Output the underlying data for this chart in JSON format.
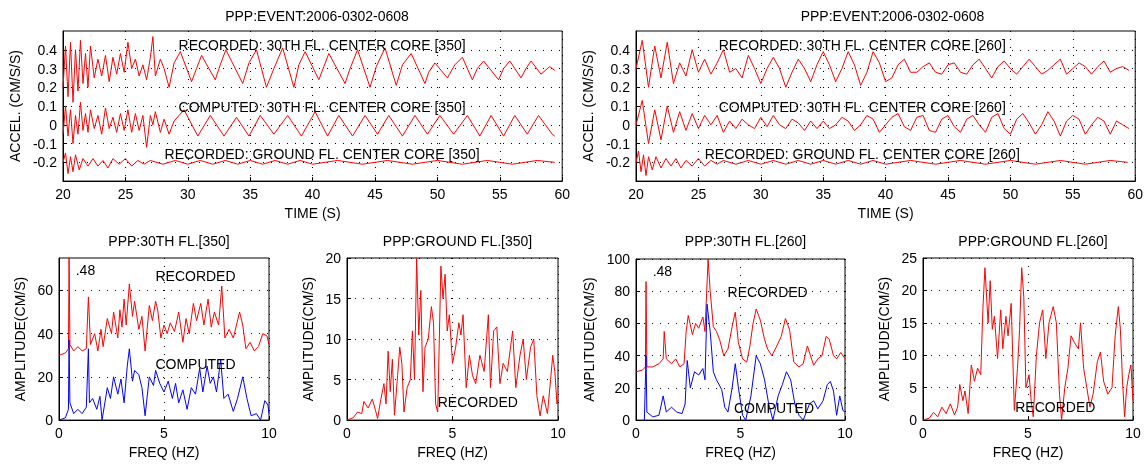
{
  "chart_data": [
    {
      "type": "line",
      "title": "PPP:EVENT:2006-0302-0608",
      "xlabel": "TIME (S)",
      "ylabel": "ACCEL. (CM/S/S)",
      "xlim": [
        20,
        60
      ],
      "xticks": [
        20,
        25,
        30,
        35,
        40,
        45,
        50,
        55,
        60
      ],
      "ylim": [
        -0.3,
        0.5
      ],
      "yticks": [
        -0.2,
        -0.1,
        0,
        0.1,
        0.2,
        0.3,
        0.4
      ],
      "grid": true,
      "x": [
        20,
        20.2,
        20.4,
        20.6,
        20.8,
        21,
        21.2,
        21.4,
        21.6,
        21.8,
        22,
        22.2,
        22.5,
        22.8,
        23.1,
        23.4,
        23.7,
        24,
        24.3,
        24.6,
        24.9,
        25.2,
        25.5,
        25.8,
        26.1,
        26.4,
        26.7,
        27,
        27.2,
        27.4,
        27.8,
        28.1,
        28.5,
        28.9,
        29.4,
        30.3,
        30.7,
        31.1,
        32.2,
        32.6,
        33.05,
        34.4,
        34.9,
        35.5,
        36.3,
        36.9,
        37.6,
        38.5,
        38.9,
        39.4,
        40.5,
        40.9,
        41.3,
        42.6,
        43.0,
        43.6,
        44.6,
        45.1,
        45.8,
        46.7,
        47.2,
        47.9,
        49.0,
        49.3,
        49.8,
        50.8,
        51.4,
        52.0,
        52.8,
        53.2,
        53.7,
        54.9,
        55.3,
        55.8,
        56.7,
        57.1,
        57.5,
        58.3,
        59.0,
        59.4
      ],
      "series": [
        {
          "name": "RECORDED: 30TH FL. CENTER CORE [350]",
          "color": "#ff0000",
          "values": [
            0.2,
            0.42,
            0.15,
            0.44,
            0.12,
            0.4,
            0.18,
            0.45,
            0.22,
            0.38,
            0.2,
            0.42,
            0.25,
            0.35,
            0.26,
            0.37,
            0.23,
            0.36,
            0.27,
            0.38,
            0.28,
            0.44,
            0.3,
            0.35,
            0.26,
            0.32,
            0.24,
            0.36,
            0.47,
            0.26,
            0.35,
            0.3,
            0.2,
            0.33,
            0.39,
            0.23,
            0.3,
            0.37,
            0.24,
            0.32,
            0.4,
            0.22,
            0.33,
            0.4,
            0.2,
            0.3,
            0.41,
            0.2,
            0.32,
            0.39,
            0.24,
            0.31,
            0.38,
            0.22,
            0.3,
            0.4,
            0.2,
            0.31,
            0.41,
            0.21,
            0.32,
            0.38,
            0.22,
            0.28,
            0.33,
            0.25,
            0.32,
            0.36,
            0.24,
            0.3,
            0.34,
            0.24,
            0.3,
            0.34,
            0.25,
            0.3,
            0.34,
            0.27,
            0.31,
            0.29
          ]
        },
        {
          "name": "COMPUTED: 30TH FL. CENTER CORE [350]",
          "color": "#ff0000",
          "x": [
            20,
            20.2,
            20.4,
            20.6,
            20.8,
            21,
            21.2,
            21.4,
            21.6,
            21.8,
            22,
            22.2,
            22.5,
            22.8,
            23.1,
            23.4,
            23.7,
            24,
            24.3,
            24.6,
            24.9,
            25.2,
            25.5,
            25.8,
            26.1,
            26.4,
            26.7,
            27,
            27.2,
            27.4,
            27.8,
            28.1,
            28.5,
            28.9,
            29.7,
            30.8,
            31.8,
            32.9,
            33.9,
            34.9,
            35.8,
            36.9,
            38.0,
            39.1,
            40.2,
            41.2,
            42.1,
            43.2,
            44.2,
            45.2,
            46.1,
            47.2,
            48.2,
            49.2,
            50.2,
            51.3,
            52.4,
            53.4,
            54.3,
            55.3,
            56.2,
            57.2,
            58.1,
            59.2,
            59.4
          ],
          "values": [
            -0.05,
            0.1,
            -0.06,
            0.08,
            -0.1,
            0.05,
            -0.05,
            0.12,
            -0.03,
            0.06,
            -0.04,
            0.08,
            -0.02,
            0.05,
            -0.05,
            0.09,
            -0.02,
            0.04,
            -0.04,
            0.06,
            -0.03,
            0.08,
            -0.04,
            0.06,
            -0.03,
            0.05,
            -0.12,
            0.05,
            0.0,
            0.07,
            -0.04,
            0.03,
            -0.05,
            0.02,
            0.08,
            -0.06,
            0.05,
            -0.06,
            0.04,
            -0.06,
            0.05,
            -0.05,
            0.05,
            -0.06,
            0.07,
            -0.06,
            0.05,
            -0.06,
            0.05,
            -0.05,
            0.05,
            -0.06,
            0.05,
            -0.05,
            0.05,
            -0.05,
            0.05,
            -0.06,
            0.05,
            -0.06,
            0.05,
            -0.05,
            0.05,
            -0.05,
            -0.06
          ]
        },
        {
          "name": "RECORDED: GROUND FL. CENTER CORE [350]",
          "color": "#ff0000",
          "x": [
            20,
            20.2,
            20.4,
            20.6,
            20.8,
            21,
            21.3,
            21.6,
            22,
            22.4,
            22.8,
            23.2,
            23.6,
            24,
            24.5,
            25,
            25.5,
            26,
            26.5,
            27,
            28,
            29,
            30,
            31,
            32,
            33,
            34,
            35,
            36,
            37,
            38,
            39,
            40,
            42,
            44,
            46,
            48,
            50,
            52,
            54,
            56,
            58,
            59.4
          ],
          "values": [
            -0.2,
            -0.15,
            -0.26,
            -0.17,
            -0.25,
            -0.16,
            -0.24,
            -0.18,
            -0.22,
            -0.18,
            -0.22,
            -0.19,
            -0.23,
            -0.18,
            -0.21,
            -0.18,
            -0.22,
            -0.19,
            -0.21,
            -0.19,
            -0.21,
            -0.19,
            -0.21,
            -0.19,
            -0.21,
            -0.19,
            -0.21,
            -0.19,
            -0.21,
            -0.19,
            -0.21,
            -0.19,
            -0.21,
            -0.19,
            -0.21,
            -0.19,
            -0.21,
            -0.19,
            -0.21,
            -0.19,
            -0.21,
            -0.19,
            -0.2
          ]
        }
      ]
    },
    {
      "type": "line",
      "title": "PPP:EVENT:2006-0302-0608",
      "xlabel": "TIME (S)",
      "ylabel": "ACCEL. (CM/S/S)",
      "xlim": [
        20,
        60
      ],
      "xticks": [
        20,
        25,
        30,
        35,
        40,
        45,
        50,
        55,
        60
      ],
      "ylim": [
        -0.3,
        0.5
      ],
      "yticks": [
        -0.2,
        -0.1,
        0,
        0.1,
        0.2,
        0.3,
        0.4
      ],
      "grid": true,
      "x": [
        20,
        20.5,
        21,
        21.5,
        22,
        22.5,
        23,
        23.5,
        24,
        24.5,
        25,
        25.5,
        26,
        26.5,
        27,
        27.5,
        28,
        28.5,
        29,
        29.5,
        30,
        30.5,
        31,
        31.5,
        32,
        32.5,
        33,
        33.5,
        34,
        34.5,
        35,
        35.5,
        36,
        36.5,
        37,
        37.5,
        38,
        38.5,
        39,
        39.5,
        40,
        40.5,
        41,
        41.5,
        42,
        42.5,
        43,
        43.5,
        44,
        44.5,
        45,
        45.5,
        46,
        46.5,
        47,
        47.5,
        48,
        48.5,
        49,
        49.5,
        50,
        50.5,
        51,
        51.5,
        52,
        52.5,
        53,
        53.5,
        54,
        54.5,
        55,
        55.5,
        56,
        56.5,
        57,
        57.5,
        58,
        58.5,
        59,
        59.5
      ],
      "series": [
        {
          "name": "RECORDED: 30TH FL. CENTER CORE [260]",
          "color": "#ff0000",
          "values": [
            0.3,
            0.45,
            0.2,
            0.42,
            0.25,
            0.44,
            0.22,
            0.33,
            0.26,
            0.4,
            0.28,
            0.35,
            0.27,
            0.33,
            0.4,
            0.28,
            0.3,
            0.25,
            0.37,
            0.3,
            0.22,
            0.3,
            0.36,
            0.3,
            0.2,
            0.28,
            0.35,
            0.3,
            0.23,
            0.32,
            0.39,
            0.32,
            0.23,
            0.3,
            0.39,
            0.32,
            0.21,
            0.28,
            0.39,
            0.33,
            0.23,
            0.25,
            0.32,
            0.35,
            0.28,
            0.28,
            0.31,
            0.33,
            0.28,
            0.27,
            0.32,
            0.33,
            0.28,
            0.27,
            0.32,
            0.35,
            0.3,
            0.25,
            0.31,
            0.34,
            0.3,
            0.27,
            0.31,
            0.35,
            0.31,
            0.27,
            0.29,
            0.32,
            0.35,
            0.27,
            0.3,
            0.33,
            0.31,
            0.27,
            0.31,
            0.34,
            0.28,
            0.3,
            0.31,
            0.29
          ]
        },
        {
          "name": "COMPUTED: 30TH FL. CENTER CORE [260]",
          "color": "#ff0000",
          "values": [
            0.0,
            0.13,
            -0.1,
            0.08,
            -0.08,
            0.1,
            -0.04,
            0.07,
            -0.03,
            0.06,
            -0.02,
            0.05,
            0.0,
            0.05,
            -0.04,
            0.02,
            -0.02,
            0.03,
            0.0,
            -0.02,
            0.04,
            -0.01,
            0.05,
            0.0,
            -0.02,
            0.03,
            0.01,
            -0.03,
            0.02,
            -0.02,
            0.02,
            -0.02,
            0.0,
            0.04,
            0.02,
            -0.03,
            0.0,
            0.05,
            0.03,
            -0.04,
            0.0,
            0.04,
            0.06,
            -0.01,
            -0.03,
            0.04,
            0.05,
            -0.03,
            -0.04,
            0.03,
            0.05,
            -0.01,
            -0.04,
            0.03,
            0.05,
            0.0,
            -0.04,
            0.04,
            0.06,
            -0.02,
            -0.05,
            0.03,
            0.06,
            0.01,
            -0.05,
            0.0,
            0.07,
            0.02,
            -0.06,
            0.02,
            0.05,
            0.03,
            -0.05,
            0.0,
            0.04,
            0.02,
            -0.05,
            0.02,
            0.0,
            -0.02
          ]
        },
        {
          "name": "RECORDED: GROUND FL. CENTER CORE [260]",
          "color": "#ff0000",
          "x": [
            20,
            20.2,
            20.4,
            20.6,
            20.8,
            21,
            21.3,
            21.6,
            22,
            22.4,
            22.8,
            23.2,
            23.6,
            24,
            24.5,
            25,
            25.5,
            26,
            26.5,
            27,
            28,
            29,
            30,
            31,
            32,
            33,
            34,
            35,
            36,
            37,
            38,
            39,
            40,
            42,
            44,
            46,
            48,
            50,
            52,
            54,
            56,
            58,
            59.4
          ],
          "values": [
            -0.2,
            -0.14,
            -0.25,
            -0.16,
            -0.27,
            -0.17,
            -0.24,
            -0.17,
            -0.23,
            -0.18,
            -0.22,
            -0.18,
            -0.23,
            -0.19,
            -0.22,
            -0.18,
            -0.22,
            -0.19,
            -0.21,
            -0.19,
            -0.21,
            -0.19,
            -0.21,
            -0.19,
            -0.21,
            -0.19,
            -0.21,
            -0.19,
            -0.21,
            -0.19,
            -0.21,
            -0.19,
            -0.21,
            -0.19,
            -0.21,
            -0.19,
            -0.21,
            -0.19,
            -0.21,
            -0.19,
            -0.21,
            -0.19,
            -0.2
          ]
        }
      ]
    },
    {
      "type": "line",
      "title": "PPP:30TH FL.[350]",
      "xlabel": "FREQ (HZ)",
      "ylabel": "AMPLITUDE(CM/S)",
      "xlim": [
        0,
        10
      ],
      "xticks": [
        0,
        5,
        10
      ],
      "ylim": [
        0,
        75
      ],
      "yticks": [
        0,
        20,
        40,
        60
      ],
      "grid": true,
      "annotations": [
        ".48"
      ],
      "series": [
        {
          "name": "RECORDED",
          "color": "#ff0000",
          "x": [
            0,
            0.3,
            0.45,
            0.48,
            0.52,
            0.7,
            0.9,
            1.1,
            1.3,
            1.4,
            1.5,
            1.7,
            1.85,
            2.0,
            2.1,
            2.3,
            2.5,
            2.6,
            2.8,
            2.9,
            3.0,
            3.1,
            3.2,
            3.35,
            3.5,
            3.6,
            3.8,
            3.95,
            4.1,
            4.3,
            4.45,
            4.6,
            4.7,
            4.85,
            5.0,
            5.15,
            5.3,
            5.5,
            5.7,
            5.9,
            6.05,
            6.2,
            6.4,
            6.55,
            6.75,
            6.9,
            7.1,
            7.25,
            7.4,
            7.6,
            7.75,
            7.9,
            8.1,
            8.3,
            8.6,
            8.75,
            8.9,
            9.1,
            9.3,
            9.5,
            9.7,
            9.9,
            10
          ],
          "values": [
            30,
            31,
            33,
            75,
            35,
            32,
            34,
            32,
            33,
            57,
            35,
            40,
            32,
            42,
            34,
            47,
            40,
            50,
            38,
            51,
            43,
            56,
            44,
            63,
            48,
            55,
            42,
            48,
            32,
            53,
            46,
            55,
            51,
            38,
            44,
            40,
            45,
            41,
            50,
            36,
            47,
            40,
            54,
            46,
            54,
            44,
            56,
            43,
            50,
            44,
            62,
            38,
            42,
            38,
            50,
            44,
            33,
            36,
            32,
            34,
            40,
            39,
            35
          ]
        },
        {
          "name": "COMPUTED",
          "color": "#0000ff",
          "x": [
            0,
            0.3,
            0.45,
            0.48,
            0.52,
            0.7,
            0.9,
            1.1,
            1.3,
            1.4,
            1.45,
            1.6,
            1.8,
            1.95,
            2.05,
            2.3,
            2.45,
            2.6,
            2.8,
            2.95,
            3.1,
            3.25,
            3.35,
            3.5,
            3.6,
            3.8,
            3.95,
            4.1,
            4.3,
            4.5,
            4.6,
            4.8,
            5.0,
            5.2,
            5.4,
            5.55,
            5.7,
            5.9,
            6.1,
            6.3,
            6.5,
            6.7,
            6.85,
            7.05,
            7.2,
            7.35,
            7.5,
            7.7,
            7.85,
            8.05,
            8.3,
            8.5,
            8.75,
            8.95,
            9.15,
            9.4,
            9.6,
            9.8,
            9.95,
            10
          ],
          "values": [
            0,
            1,
            5,
            37,
            8,
            3,
            5,
            3,
            6,
            33,
            8,
            10,
            5,
            11,
            0,
            15,
            10,
            20,
            12,
            19,
            8,
            25,
            33,
            18,
            23,
            21,
            15,
            2,
            20,
            16,
            23,
            17,
            13,
            18,
            10,
            17,
            8,
            14,
            5,
            15,
            12,
            24,
            13,
            25,
            17,
            20,
            13,
            28,
            10,
            12,
            4,
            10,
            20,
            10,
            2,
            3,
            0,
            9,
            7,
            3
          ]
        }
      ]
    },
    {
      "type": "line",
      "title": "PPP:GROUND FL.[350]",
      "xlabel": "FREQ (HZ)",
      "ylabel": "AMPLITUDE(CM/S)",
      "xlim": [
        0,
        10
      ],
      "xticks": [
        0,
        5,
        10
      ],
      "ylim": [
        0,
        20
      ],
      "yticks": [
        0,
        5,
        10,
        15,
        20
      ],
      "grid": true,
      "series": [
        {
          "name": "RECORDED",
          "color": "#ff0000",
          "x": [
            0,
            0.3,
            0.5,
            0.7,
            0.8,
            1.0,
            1.2,
            1.35,
            1.45,
            1.6,
            1.75,
            1.85,
            1.95,
            2.05,
            2.15,
            2.25,
            2.4,
            2.5,
            2.6,
            2.7,
            2.85,
            3.0,
            3.1,
            3.2,
            3.3,
            3.4,
            3.5,
            3.6,
            3.7,
            3.85,
            4.0,
            4.1,
            4.2,
            4.3,
            4.45,
            4.55,
            4.65,
            4.75,
            4.85,
            5.0,
            5.15,
            5.3,
            5.4,
            5.5,
            5.65,
            5.8,
            5.95,
            6.1,
            6.3,
            6.5,
            6.7,
            6.8,
            6.95,
            7.1,
            7.25,
            7.4,
            7.6,
            7.85,
            8.0,
            8.2,
            8.35,
            8.5,
            8.7,
            8.85,
            9.0,
            9.15,
            9.3,
            9.5,
            9.65,
            9.75,
            9.85,
            9.95,
            10
          ],
          "values": [
            0,
            0.3,
            1,
            0.8,
            2.3,
            1.5,
            2.6,
            1.2,
            0.2,
            2.5,
            4.5,
            2,
            8.5,
            3.5,
            7.5,
            0.6,
            5.5,
            9,
            7,
            1,
            4,
            5,
            11,
            5,
            20,
            10.5,
            16,
            3.5,
            9,
            10,
            14,
            12,
            2,
            1,
            19,
            15,
            18,
            11,
            13,
            7,
            9,
            12,
            10.5,
            13,
            4,
            8,
            5.5,
            4.5,
            8,
            6,
            13,
            4,
            11,
            11.5,
            4.5,
            7,
            6,
            11,
            4,
            8,
            10,
            5,
            9,
            10,
            3,
            0.5,
            3,
            0.8,
            5,
            8,
            6,
            2,
            2.5
          ]
        }
      ]
    },
    {
      "type": "line",
      "title": "PPP:30TH FL.[260]",
      "xlabel": "FREQ (HZ)",
      "ylabel": "AMPLITUDE(CM/S)",
      "xlim": [
        0,
        10
      ],
      "xticks": [
        0,
        5,
        10
      ],
      "ylim": [
        0,
        100
      ],
      "yticks": [
        0,
        20,
        40,
        60,
        80,
        100
      ],
      "grid": true,
      "annotations": [
        ".48"
      ],
      "series": [
        {
          "name": "RECORDED",
          "color": "#ff0000",
          "x": [
            0,
            0.3,
            0.45,
            0.48,
            0.52,
            0.8,
            1.1,
            1.3,
            1.35,
            1.45,
            1.7,
            1.9,
            2.1,
            2.3,
            2.4,
            2.5,
            2.7,
            2.85,
            3.0,
            3.2,
            3.3,
            3.45,
            3.55,
            3.7,
            3.85,
            4.0,
            4.2,
            4.4,
            4.6,
            4.75,
            4.9,
            5.1,
            5.3,
            5.45,
            5.6,
            5.75,
            5.95,
            6.15,
            6.3,
            6.5,
            6.7,
            6.95,
            7.15,
            7.35,
            7.55,
            7.8,
            8.0,
            8.2,
            8.35,
            8.5,
            8.7,
            8.9,
            9.1,
            9.25,
            9.45,
            9.6,
            9.8,
            10
          ],
          "values": [
            30,
            31,
            33,
            86,
            33,
            33,
            35,
            38,
            55,
            38,
            35,
            38,
            33,
            35,
            55,
            65,
            53,
            60,
            57,
            64,
            55,
            100,
            80,
            58,
            55,
            50,
            40,
            44,
            58,
            67,
            48,
            38,
            36,
            46,
            60,
            69,
            62,
            50,
            44,
            40,
            45,
            52,
            63,
            56,
            36,
            33,
            35,
            46,
            40,
            34,
            38,
            40,
            52,
            50,
            40,
            38,
            42,
            38
          ]
        },
        {
          "name": "COMPUTED",
          "color": "#0000ff",
          "x": [
            0.4,
            0.48,
            0.52,
            0.8,
            1.1,
            1.3,
            1.45,
            1.7,
            1.95,
            2.2,
            2.35,
            2.45,
            2.6,
            2.8,
            3.0,
            3.2,
            3.3,
            3.4,
            3.55,
            3.7,
            3.85,
            4.1,
            4.25,
            4.4,
            4.6,
            4.75,
            4.9,
            5.1,
            5.25,
            5.5,
            5.75,
            5.95,
            6.15,
            6.35,
            6.55,
            6.8,
            7.0,
            7.2,
            7.4,
            7.6,
            7.8,
            8.0,
            8.3,
            8.5,
            8.7,
            8.95,
            9.15,
            9.3,
            9.45,
            9.6,
            9.75,
            9.9,
            10
          ],
          "values": [
            0,
            40,
            5,
            2,
            3,
            15,
            5,
            8,
            5,
            4,
            10,
            37,
            20,
            30,
            28,
            32,
            25,
            72,
            55,
            30,
            25,
            19,
            8,
            5,
            20,
            35,
            20,
            3,
            0,
            15,
            40,
            35,
            25,
            10,
            0,
            15,
            22,
            30,
            25,
            10,
            3,
            0,
            10,
            12,
            7,
            12,
            22,
            24,
            18,
            3,
            15,
            6,
            5
          ]
        }
      ]
    },
    {
      "type": "line",
      "title": "PPP:GROUND FL.[260]",
      "xlabel": "FREQ (HZ)",
      "ylabel": "AMPLITUDE(CM/S)",
      "xlim": [
        0,
        10
      ],
      "xticks": [
        0,
        5,
        10
      ],
      "ylim": [
        0,
        25
      ],
      "yticks": [
        0,
        5,
        10,
        15,
        20,
        25
      ],
      "grid": true,
      "series": [
        {
          "name": "RECORDED",
          "color": "#ff0000",
          "x": [
            0,
            0.3,
            0.5,
            0.7,
            0.9,
            1.1,
            1.3,
            1.5,
            1.65,
            1.75,
            1.9,
            2.0,
            2.15,
            2.3,
            2.45,
            2.6,
            2.75,
            2.85,
            2.95,
            3.1,
            3.2,
            3.3,
            3.4,
            3.55,
            3.7,
            3.8,
            3.95,
            4.05,
            4.2,
            4.35,
            4.5,
            4.6,
            4.7,
            4.8,
            4.9,
            5.05,
            5.15,
            5.25,
            5.4,
            5.55,
            5.7,
            5.85,
            6.0,
            6.2,
            6.35,
            6.5,
            6.6,
            6.75,
            6.9,
            7.05,
            7.2,
            7.4,
            7.5,
            7.65,
            7.8,
            7.95,
            8.1,
            8.3,
            8.45,
            8.6,
            8.8,
            9.0,
            9.15,
            9.3,
            9.4,
            9.5,
            9.6,
            9.7,
            9.8,
            9.9,
            10
          ],
          "values": [
            0,
            0.3,
            1.2,
            0.5,
            2,
            1,
            2.5,
            0.8,
            2,
            5.5,
            3,
            4.5,
            1,
            8.5,
            6,
            8,
            7,
            17,
            23.5,
            15,
            21.5,
            14,
            16,
            9.5,
            17,
            11,
            16,
            13,
            18,
            1.5,
            8,
            14,
            23.5,
            19,
            5,
            7,
            3,
            0.5,
            10,
            15,
            17,
            9.5,
            15,
            17.5,
            15,
            4,
            0,
            5,
            8,
            13,
            12,
            11,
            15,
            8,
            5,
            2,
            4,
            9,
            10.5,
            6,
            4,
            5,
            13,
            17.5,
            14,
            6,
            0.5,
            5,
            7,
            8.5,
            3
          ]
        }
      ]
    }
  ]
}
